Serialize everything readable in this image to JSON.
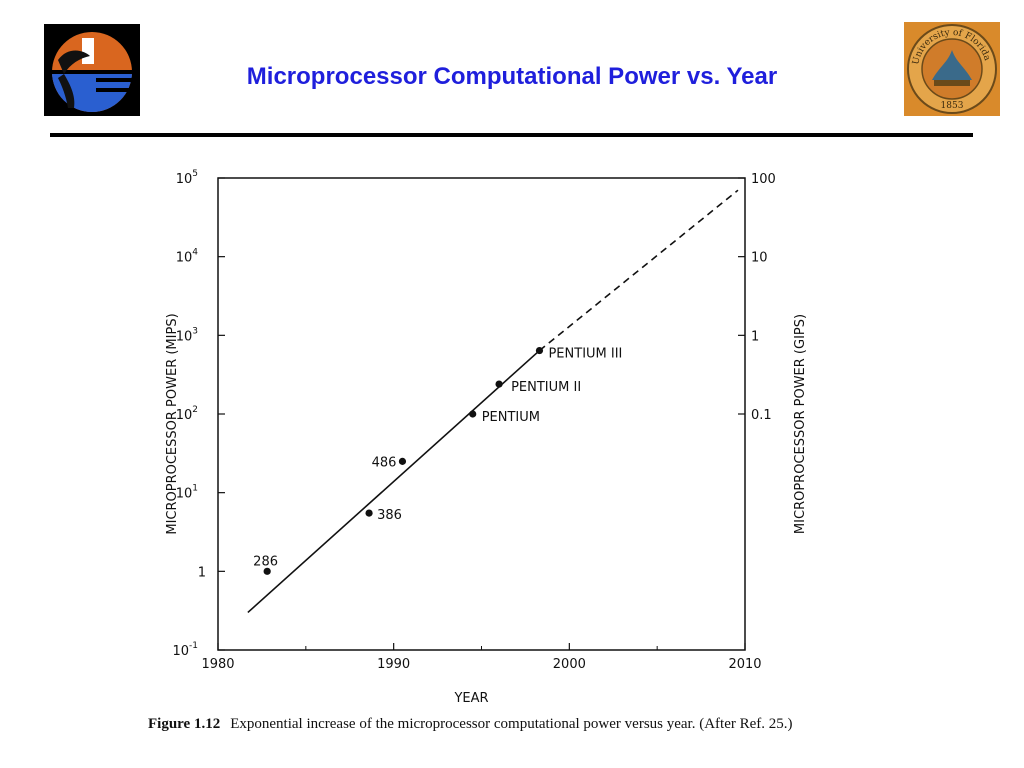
{
  "slide": {
    "title": "Microprocessor Computational Power vs. Year",
    "title_color": "#1f1fdc"
  },
  "logos": {
    "left": {
      "icon": "florida-gator-logo-icon"
    },
    "right": {
      "icon": "university-of-florida-seal-icon",
      "text_top": "University of Florida",
      "year": "1853"
    }
  },
  "chart_data": {
    "type": "scatter",
    "title": "",
    "xlabel": "YEAR",
    "ylabel": "MICROPROCESSOR POWER (MIPS)",
    "y2label": "MICROPROCESSOR POWER (GIPS)",
    "xlim": [
      1980,
      2010
    ],
    "ylim": [
      0.1,
      100000
    ],
    "yscale": "log",
    "x_ticks": [
      "1980",
      "1990",
      "2000",
      "2010"
    ],
    "y_ticks": [
      {
        "base": "10",
        "exp": "5",
        "value": 100000
      },
      {
        "base": "10",
        "exp": "4",
        "value": 10000
      },
      {
        "base": "10",
        "exp": "3",
        "value": 1000
      },
      {
        "base": "10",
        "exp": "2",
        "value": 100
      },
      {
        "base": "10",
        "exp": "1",
        "value": 10
      },
      {
        "base": "1",
        "exp": "",
        "value": 1
      },
      {
        "base": "10",
        "exp": "-1",
        "value": 0.1
      }
    ],
    "y2_ticks": [
      {
        "label": "100",
        "value": 100000
      },
      {
        "label": "10",
        "value": 10000
      },
      {
        "label": "1",
        "value": 1000
      },
      {
        "label": "0.1",
        "value": 100
      }
    ],
    "points": [
      {
        "label": "286",
        "x": 1982.8,
        "y": 1.0
      },
      {
        "label": "386",
        "x": 1988.6,
        "y": 5.5
      },
      {
        "label": "486",
        "x": 1990.5,
        "y": 25
      },
      {
        "label": "PENTIUM",
        "x": 1994.5,
        "y": 100
      },
      {
        "label": "PENTIUM II",
        "x": 1996.0,
        "y": 240
      },
      {
        "label": "PENTIUM III",
        "x": 1998.3,
        "y": 640
      }
    ],
    "trend_solid": [
      {
        "x": 1981.7,
        "y": 0.3
      },
      {
        "x": 1998.3,
        "y": 640
      }
    ],
    "trend_dashed": [
      {
        "x": 1998.3,
        "y": 640
      },
      {
        "x": 2009.6,
        "y": 70000
      }
    ],
    "grid": false
  },
  "caption": {
    "label": "Figure 1.12",
    "text": "Exponential increase of the microprocessor computational power versus year. (After Ref. 25.)"
  }
}
